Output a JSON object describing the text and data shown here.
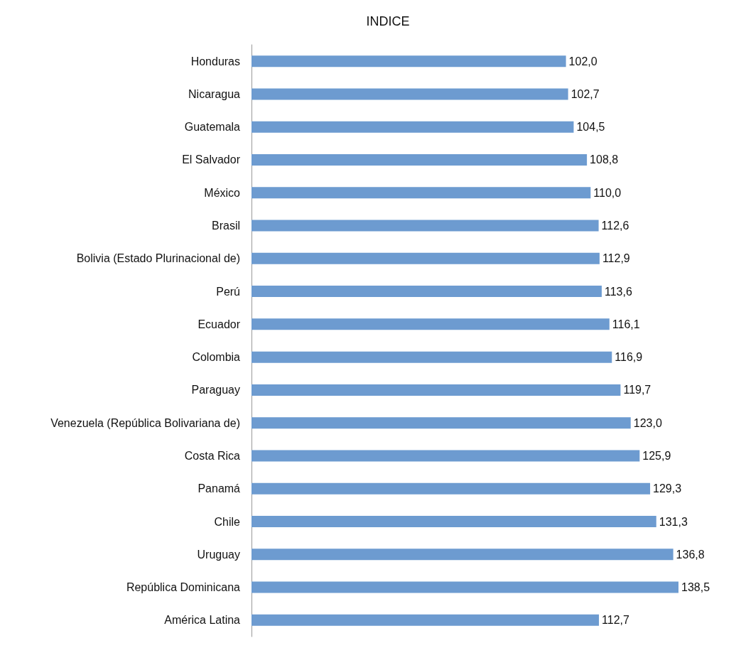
{
  "chart_data": {
    "type": "bar",
    "orientation": "horizontal",
    "title": "INDICE",
    "categories": [
      "Honduras",
      "Nicaragua",
      "Guatemala",
      "El Salvador",
      "México",
      "Brasil",
      "Bolivia (Estado Plurinacional de)",
      "Perú",
      "Ecuador",
      "Colombia",
      "Paraguay",
      "Venezuela (República Bolivariana de)",
      "Costa Rica",
      "Panamá",
      "Chile",
      "Uruguay",
      "República Dominicana",
      "América Latina"
    ],
    "values": [
      102.0,
      102.7,
      104.5,
      108.8,
      110.0,
      112.6,
      112.9,
      113.6,
      116.1,
      116.9,
      119.7,
      123.0,
      125.9,
      129.3,
      131.3,
      136.8,
      138.5,
      112.7
    ],
    "value_labels": [
      "102,0",
      "102,7",
      "104,5",
      "108,8",
      "110,0",
      "112,6",
      "112,9",
      "113,6",
      "116,1",
      "116,9",
      "119,7",
      "123,0",
      "125,9",
      "129,3",
      "131,3",
      "136,8",
      "138,5",
      "112,7"
    ],
    "color": "#6d9bd0"
  }
}
